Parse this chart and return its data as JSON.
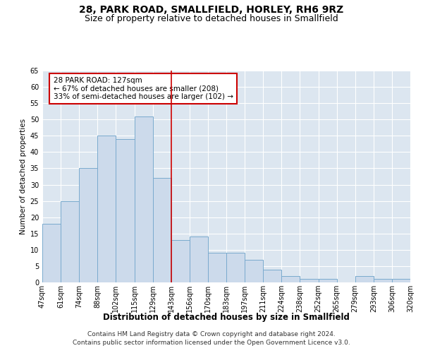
{
  "title": "28, PARK ROAD, SMALLFIELD, HORLEY, RH6 9RZ",
  "subtitle": "Size of property relative to detached houses in Smallfield",
  "xlabel": "Distribution of detached houses by size in Smallfield",
  "ylabel": "Number of detached properties",
  "bar_values": [
    18,
    25,
    35,
    45,
    44,
    51,
    32,
    13,
    14,
    9,
    9,
    7,
    4,
    2,
    1,
    1,
    0,
    2,
    1,
    1
  ],
  "bar_labels": [
    "47sqm",
    "61sqm",
    "74sqm",
    "88sqm",
    "102sqm",
    "115sqm",
    "129sqm",
    "143sqm",
    "156sqm",
    "170sqm",
    "183sqm",
    "197sqm",
    "211sqm",
    "224sqm",
    "238sqm",
    "252sqm",
    "265sqm",
    "279sqm",
    "293sqm",
    "306sqm",
    "320sqm"
  ],
  "bar_color": "#ccdaeb",
  "bar_edge_color": "#7aaace",
  "vline_x": 6.5,
  "vline_color": "#cc0000",
  "ylim": [
    0,
    65
  ],
  "yticks": [
    0,
    5,
    10,
    15,
    20,
    25,
    30,
    35,
    40,
    45,
    50,
    55,
    60,
    65
  ],
  "annotation_text": "28 PARK ROAD: 127sqm\n← 67% of detached houses are smaller (208)\n33% of semi-detached houses are larger (102) →",
  "annotation_box_color": "#ffffff",
  "annotation_box_edge": "#cc0000",
  "footer_line1": "Contains HM Land Registry data © Crown copyright and database right 2024.",
  "footer_line2": "Contains public sector information licensed under the Open Government Licence v3.0.",
  "background_color": "#dce6f0",
  "grid_color": "#ffffff",
  "title_fontsize": 10,
  "subtitle_fontsize": 9,
  "xlabel_fontsize": 8.5,
  "ylabel_fontsize": 7.5,
  "tick_fontsize": 7,
  "annotation_fontsize": 7.5,
  "footer_fontsize": 6.5
}
